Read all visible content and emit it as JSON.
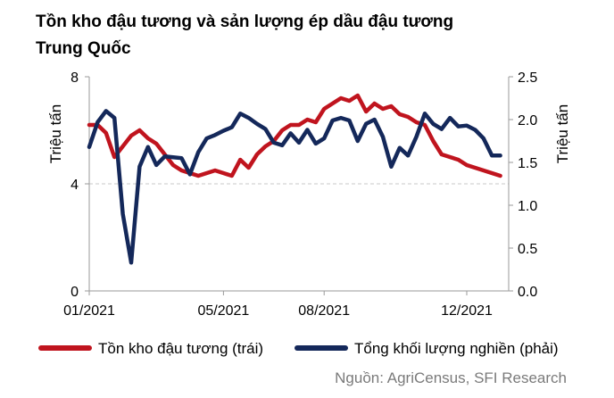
{
  "chart_data": {
    "type": "line",
    "title_lines": [
      "Tồn kho đậu tương và sản lượng ép dầu đậu tương",
      "Trung Quốc"
    ],
    "ylabel_left": "Triệu tấn",
    "ylabel_right": "Triệu tấn",
    "y_left_ticks": [
      "0",
      "4",
      "8"
    ],
    "y_right_ticks": [
      "0.0",
      "0.5",
      "1.0",
      "1.5",
      "2.0",
      "2.5"
    ],
    "ylim_left": [
      0,
      8
    ],
    "ylim_right": [
      0,
      2.5
    ],
    "x_ticks": [
      "01/2021",
      "05/2021",
      "08/2021",
      "12/2021"
    ],
    "x_tick_weeks": [
      1,
      17,
      29,
      46
    ],
    "xlim_weeks": [
      1,
      51
    ],
    "gridline_left_value": 4,
    "source": "Nguồn: AgriCensus, SFI Research",
    "series": [
      {
        "name": "Tồn kho đậu tương (trái)",
        "axis": "left",
        "color": "#c0141e",
        "x": [
          1,
          2,
          3,
          4,
          5,
          6,
          7,
          8,
          9,
          10,
          11,
          12,
          13,
          14,
          15,
          16,
          17,
          18,
          19,
          20,
          21,
          22,
          23,
          24,
          25,
          26,
          27,
          28,
          29,
          30,
          31,
          32,
          33,
          34,
          35,
          36,
          37,
          38,
          39,
          40,
          41,
          42,
          43,
          44,
          45,
          46,
          47,
          48,
          49,
          50
        ],
        "values": [
          6.2,
          6.2,
          5.9,
          5.0,
          5.4,
          5.8,
          6.0,
          5.7,
          5.5,
          5.1,
          4.7,
          4.5,
          4.4,
          4.3,
          4.4,
          4.5,
          4.4,
          4.3,
          4.9,
          4.6,
          5.1,
          5.4,
          5.6,
          6.0,
          6.2,
          6.2,
          6.4,
          6.3,
          6.8,
          7.0,
          7.2,
          7.1,
          7.3,
          6.7,
          7.0,
          6.8,
          6.9,
          6.6,
          6.5,
          6.3,
          6.2,
          5.6,
          5.1,
          5.0,
          4.9,
          4.7,
          4.6,
          4.5,
          4.4,
          4.3
        ]
      },
      {
        "name": "Tổng khối lượng nghiền (phải)",
        "axis": "right",
        "color": "#14285a",
        "x": [
          1,
          2,
          3,
          4,
          5,
          6,
          7,
          8,
          9,
          10,
          11,
          12,
          13,
          14,
          15,
          16,
          17,
          18,
          19,
          20,
          21,
          22,
          23,
          24,
          25,
          26,
          27,
          28,
          29,
          30,
          31,
          32,
          33,
          34,
          35,
          36,
          37,
          38,
          39,
          40,
          41,
          42,
          43,
          44,
          45,
          46,
          47,
          48,
          49,
          50
        ],
        "values": [
          1.68,
          1.97,
          2.1,
          2.02,
          0.9,
          0.33,
          1.45,
          1.68,
          1.47,
          1.57,
          1.56,
          1.55,
          1.36,
          1.62,
          1.78,
          1.82,
          1.87,
          1.91,
          2.07,
          2.02,
          1.95,
          1.89,
          1.73,
          1.7,
          1.84,
          1.73,
          1.88,
          1.72,
          1.78,
          1.99,
          2.02,
          1.99,
          1.75,
          1.95,
          2.0,
          1.8,
          1.45,
          1.67,
          1.58,
          1.8,
          2.07,
          1.95,
          1.89,
          2.02,
          1.92,
          1.93,
          1.88,
          1.78,
          1.58,
          1.58
        ]
      }
    ]
  },
  "legend": [
    {
      "label": "Tồn kho đậu tương (trái)",
      "color": "#c0141e"
    },
    {
      "label": "Tổng khối lượng nghiền (phải)",
      "color": "#14285a"
    }
  ]
}
